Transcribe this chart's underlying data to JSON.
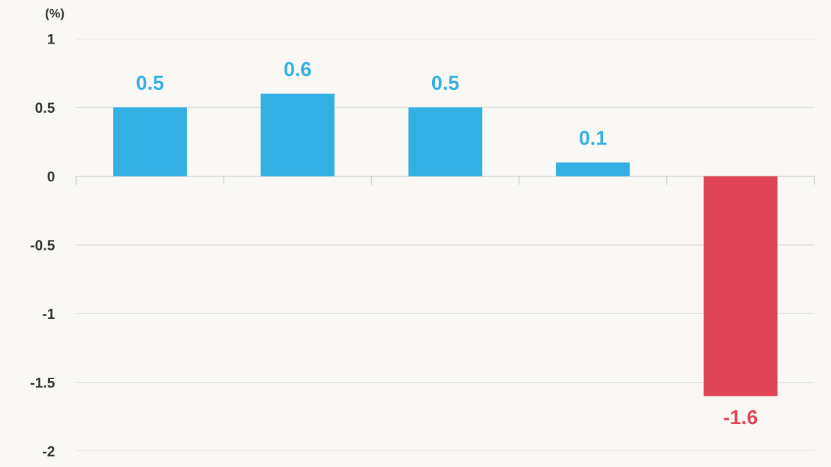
{
  "chart_data": {
    "type": "bar",
    "ylabel": "(%)",
    "categories": [
      null,
      null,
      null,
      null,
      null
    ],
    "values": [
      0.5,
      0.6,
      0.5,
      0.1,
      -1.6
    ],
    "colors": [
      "#33b0e3",
      "#33b0e3",
      "#33b0e3",
      "#33b0e3",
      "#e04555"
    ],
    "ylim": [
      -2,
      1
    ],
    "yticks": [
      -2,
      -1.5,
      -1,
      -0.5,
      0,
      0.5,
      1
    ],
    "grid": "y",
    "data_labels": true,
    "tick_labels": "y"
  }
}
